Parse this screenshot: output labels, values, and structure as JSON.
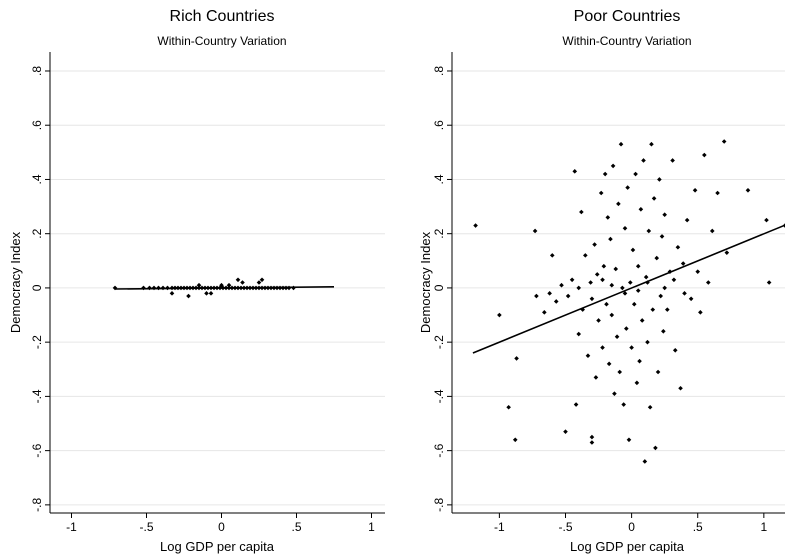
{
  "chart_data": [
    {
      "type": "scatter",
      "title": "Rich Countries",
      "subtitle": "Within-Country Variation",
      "xlabel": "Log GDP per capita",
      "ylabel": "Democracy Index",
      "xlim": [
        -1.05,
        1.03
      ],
      "ylim": [
        -0.83,
        0.87
      ],
      "xticks": [
        -1,
        -0.5,
        0,
        0.5,
        1
      ],
      "xtick_labels": [
        "-1",
        "-.5",
        "0",
        ".5",
        "1"
      ],
      "yticks": [
        -0.8,
        -0.6,
        -0.4,
        -0.2,
        0,
        0.2,
        0.4,
        0.6,
        0.8
      ],
      "ytick_labels": [
        "-.8",
        "-.6",
        "-.4",
        "-.2",
        "0",
        ".2",
        ".4",
        ".6",
        ".8"
      ],
      "grid": "horizontal",
      "fit_line": {
        "x": [
          -0.71,
          0.75
        ],
        "y": [
          -0.004,
          0.004
        ]
      },
      "points": [
        [
          -0.71,
          0.0
        ],
        [
          -0.52,
          0.0
        ],
        [
          -0.48,
          0.0
        ],
        [
          -0.45,
          0.0
        ],
        [
          -0.42,
          0.0
        ],
        [
          -0.39,
          0.0
        ],
        [
          -0.36,
          0.0
        ],
        [
          -0.33,
          0.0
        ],
        [
          -0.31,
          0.0
        ],
        [
          -0.29,
          0.0
        ],
        [
          -0.27,
          0.0
        ],
        [
          -0.25,
          0.0
        ],
        [
          -0.23,
          0.0
        ],
        [
          -0.21,
          0.0
        ],
        [
          -0.19,
          0.0
        ],
        [
          -0.17,
          0.0
        ],
        [
          -0.15,
          0.0
        ],
        [
          -0.13,
          0.0
        ],
        [
          -0.11,
          0.0
        ],
        [
          -0.09,
          0.0
        ],
        [
          -0.07,
          0.0
        ],
        [
          -0.05,
          0.0
        ],
        [
          -0.03,
          0.0
        ],
        [
          -0.01,
          0.0
        ],
        [
          0.01,
          0.0
        ],
        [
          0.03,
          0.0
        ],
        [
          0.05,
          0.0
        ],
        [
          0.07,
          0.0
        ],
        [
          0.09,
          0.0
        ],
        [
          0.11,
          0.0
        ],
        [
          0.13,
          0.0
        ],
        [
          0.15,
          0.0
        ],
        [
          0.17,
          0.0
        ],
        [
          0.19,
          0.0
        ],
        [
          0.21,
          0.0
        ],
        [
          0.23,
          0.0
        ],
        [
          0.25,
          0.0
        ],
        [
          0.27,
          0.0
        ],
        [
          0.29,
          0.0
        ],
        [
          0.31,
          0.0
        ],
        [
          0.33,
          0.0
        ],
        [
          0.35,
          0.0
        ],
        [
          0.37,
          0.0
        ],
        [
          0.39,
          0.0
        ],
        [
          0.41,
          0.0
        ],
        [
          0.43,
          0.0
        ],
        [
          0.45,
          0.0
        ],
        [
          0.48,
          0.0
        ],
        [
          -0.33,
          -0.02
        ],
        [
          -0.22,
          -0.03
        ],
        [
          -0.1,
          -0.02
        ],
        [
          -0.07,
          -0.02
        ],
        [
          0.0,
          0.01
        ],
        [
          0.11,
          0.03
        ],
        [
          0.14,
          0.02
        ],
        [
          0.25,
          0.02
        ],
        [
          0.27,
          0.03
        ],
        [
          0.05,
          0.01
        ],
        [
          -0.15,
          0.01
        ]
      ]
    },
    {
      "type": "scatter",
      "title": "Poor Countries",
      "subtitle": "Within-Country Variation",
      "xlabel": "Log GDP per capita",
      "ylabel": "Democracy Index",
      "xlim": [
        -1.26,
        1.16
      ],
      "ylim": [
        -0.83,
        0.87
      ],
      "xticks": [
        -1,
        -0.5,
        0,
        0.5,
        1
      ],
      "xtick_labels": [
        "-1",
        "-.5",
        "0",
        ".5",
        "1"
      ],
      "yticks": [
        -0.8,
        -0.6,
        -0.4,
        -0.2,
        0,
        0.2,
        0.4,
        0.6,
        0.8
      ],
      "ytick_labels": [
        "-.8",
        "-.6",
        "-.4",
        "-.2",
        "0",
        ".2",
        ".4",
        ".6",
        ".8"
      ],
      "grid": "horizontal",
      "fit_line": {
        "x": [
          -1.2,
          1.16
        ],
        "y": [
          -0.24,
          0.23
        ]
      },
      "points": [
        [
          -1.18,
          0.23
        ],
        [
          -1.0,
          -0.1
        ],
        [
          -0.93,
          -0.44
        ],
        [
          -0.88,
          -0.56
        ],
        [
          -0.87,
          -0.26
        ],
        [
          -0.73,
          0.21
        ],
        [
          -0.72,
          -0.03
        ],
        [
          -0.66,
          -0.09
        ],
        [
          -0.62,
          -0.02
        ],
        [
          -0.6,
          0.12
        ],
        [
          -0.57,
          -0.05
        ],
        [
          -0.53,
          0.01
        ],
        [
          -0.5,
          -0.53
        ],
        [
          -0.48,
          -0.03
        ],
        [
          -0.45,
          0.03
        ],
        [
          -0.43,
          0.43
        ],
        [
          -0.42,
          -0.43
        ],
        [
          -0.4,
          -0.17
        ],
        [
          -0.38,
          0.28
        ],
        [
          -0.37,
          -0.08
        ],
        [
          -0.35,
          0.12
        ],
        [
          -0.33,
          -0.25
        ],
        [
          -0.31,
          0.02
        ],
        [
          -0.3,
          -0.55
        ],
        [
          -0.3,
          -0.57
        ],
        [
          -0.28,
          0.16
        ],
        [
          -0.27,
          -0.33
        ],
        [
          -0.26,
          0.05
        ],
        [
          -0.25,
          -0.12
        ],
        [
          -0.23,
          0.35
        ],
        [
          -0.22,
          -0.22
        ],
        [
          -0.21,
          0.08
        ],
        [
          -0.2,
          0.42
        ],
        [
          -0.19,
          -0.06
        ],
        [
          -0.18,
          0.26
        ],
        [
          -0.17,
          -0.28
        ],
        [
          -0.16,
          0.18
        ],
        [
          -0.15,
          -0.1
        ],
        [
          -0.14,
          0.45
        ],
        [
          -0.13,
          -0.39
        ],
        [
          -0.12,
          0.07
        ],
        [
          -0.11,
          -0.18
        ],
        [
          -0.1,
          0.31
        ],
        [
          -0.09,
          -0.31
        ],
        [
          -0.08,
          0.53
        ],
        [
          -0.07,
          0.0
        ],
        [
          -0.06,
          -0.43
        ],
        [
          -0.05,
          0.22
        ],
        [
          -0.04,
          -0.15
        ],
        [
          -0.03,
          0.37
        ],
        [
          -0.02,
          -0.56
        ],
        [
          -0.01,
          0.02
        ],
        [
          0.0,
          -0.22
        ],
        [
          0.01,
          0.14
        ],
        [
          0.02,
          -0.06
        ],
        [
          0.03,
          0.42
        ],
        [
          0.04,
          -0.35
        ],
        [
          0.05,
          0.08
        ],
        [
          0.06,
          -0.27
        ],
        [
          0.07,
          0.29
        ],
        [
          0.08,
          -0.12
        ],
        [
          0.09,
          0.47
        ],
        [
          0.1,
          -0.64
        ],
        [
          0.11,
          0.04
        ],
        [
          0.12,
          -0.2
        ],
        [
          0.13,
          0.21
        ],
        [
          0.14,
          -0.44
        ],
        [
          0.15,
          0.53
        ],
        [
          0.16,
          -0.08
        ],
        [
          0.17,
          0.33
        ],
        [
          0.18,
          -0.59
        ],
        [
          0.19,
          0.11
        ],
        [
          0.2,
          -0.31
        ],
        [
          0.21,
          0.4
        ],
        [
          0.22,
          -0.03
        ],
        [
          0.23,
          0.19
        ],
        [
          0.24,
          -0.16
        ],
        [
          0.25,
          0.27
        ],
        [
          0.27,
          -0.08
        ],
        [
          0.29,
          0.06
        ],
        [
          0.31,
          0.47
        ],
        [
          0.33,
          -0.23
        ],
        [
          0.35,
          0.15
        ],
        [
          0.37,
          -0.37
        ],
        [
          0.39,
          0.09
        ],
        [
          0.42,
          0.25
        ],
        [
          0.45,
          -0.04
        ],
        [
          0.48,
          0.36
        ],
        [
          0.5,
          0.06
        ],
        [
          0.52,
          -0.09
        ],
        [
          0.55,
          0.49
        ],
        [
          0.58,
          0.02
        ],
        [
          0.61,
          0.21
        ],
        [
          0.65,
          0.35
        ],
        [
          0.7,
          0.54
        ],
        [
          0.72,
          0.13
        ],
        [
          0.88,
          0.36
        ],
        [
          1.02,
          0.25
        ],
        [
          1.04,
          0.02
        ],
        [
          1.16,
          0.23
        ],
        [
          -0.15,
          0.01
        ],
        [
          -0.05,
          -0.02
        ],
        [
          0.05,
          -0.01
        ],
        [
          0.12,
          0.02
        ],
        [
          -0.22,
          0.03
        ],
        [
          0.25,
          0.0
        ],
        [
          -0.3,
          -0.04
        ],
        [
          0.32,
          0.03
        ],
        [
          -0.4,
          0.0
        ],
        [
          0.4,
          -0.02
        ]
      ]
    }
  ]
}
